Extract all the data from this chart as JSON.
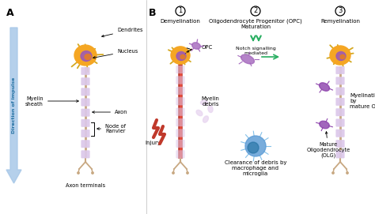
{
  "bg_color": "#ffffff",
  "label_A": "A",
  "label_B": "B",
  "direction_text": "Direction of impulse",
  "arrow_color": "#a8c8e8",
  "section_A_labels": {
    "dendrites": "Dendrites",
    "nucleus": "Nucleus",
    "myelin_sheath": "Myelin\nsheath",
    "axon": "Axon",
    "node_of_ranvier": "Node of\nRanvier",
    "axon_terminals": "Axon terminals"
  },
  "section_B_labels": {
    "step1_circle": "1",
    "step1_title": "Demyelination",
    "step2_circle": "2",
    "step2_title": "Oligodendrocyte Progenitor (OPC)\nMaturation",
    "step3_circle": "3",
    "step3_title": "Remyelination",
    "notch": "Notch signalling\nmediated",
    "opc": "OPC",
    "injury": "Injury",
    "myelin_debris": "Myelin\ndebris",
    "clearance": "Clearance of debris by\nmacrophage and\nmicroglia",
    "mature_olg": "Mature\nOligodendrocyte\n(OLG)",
    "myelination": "Myelination\nby\nmature OLG"
  },
  "neuron_dendrite_color": "#d4a820",
  "neuron_soma_color": "#f5a623",
  "nucleus_color": "#9b59b6",
  "nucleus2_color": "#e67e22",
  "myelin_color": "#dcc8ea",
  "axon_color": "#c8a882",
  "red_color": "#c0392b",
  "opc_color": "#a569bd",
  "mature_olg_color": "#8e44ad",
  "blue_cell_color": "#5b9bd5",
  "blue_cell_inner": "#2471a3",
  "green_color": "#27ae60",
  "text_color": "#222222",
  "divider_color": "#bbbbbb"
}
